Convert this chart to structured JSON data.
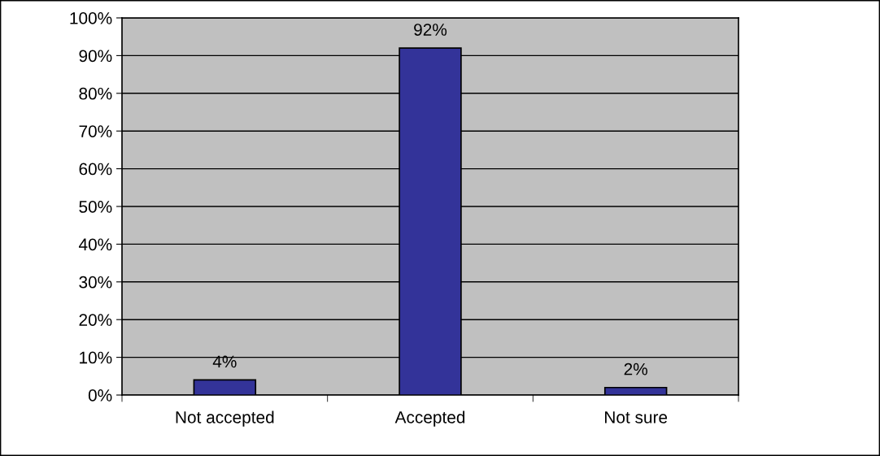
{
  "chart_data": {
    "type": "bar",
    "categories": [
      "Not accepted",
      "Accepted",
      "Not sure"
    ],
    "values": [
      4,
      92,
      2
    ],
    "value_labels": [
      "4%",
      "92%",
      "2%"
    ],
    "color": "#333399",
    "ylim": [
      0,
      100
    ],
    "yticks": [
      {
        "value": 0,
        "label": "0%"
      },
      {
        "value": 10,
        "label": "10%"
      },
      {
        "value": 20,
        "label": "20%"
      },
      {
        "value": 30,
        "label": "30%"
      },
      {
        "value": 40,
        "label": "40%"
      },
      {
        "value": 50,
        "label": "50%"
      },
      {
        "value": 60,
        "label": "60%"
      },
      {
        "value": 70,
        "label": "70%"
      },
      {
        "value": 80,
        "label": "80%"
      },
      {
        "value": 90,
        "label": "90%"
      },
      {
        "value": 100,
        "label": "100%"
      }
    ],
    "grid": "y",
    "legend": false
  }
}
